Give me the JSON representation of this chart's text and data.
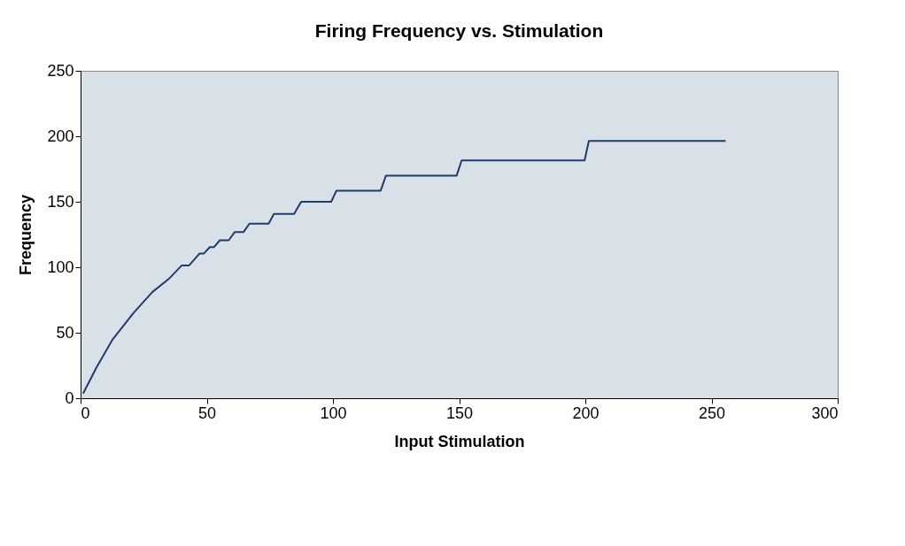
{
  "chart_data": {
    "type": "line",
    "title": "Firing Frequency vs. Stimulation",
    "xlabel": "Input Stimulation",
    "ylabel": "Frequency",
    "xlim": [
      0,
      300
    ],
    "xticks": [
      0,
      50,
      100,
      150,
      200,
      250,
      300
    ],
    "ylim": [
      0,
      250
    ],
    "yticks": [
      0,
      50,
      100,
      150,
      200,
      250
    ],
    "grid": false,
    "legend": false,
    "marker": "none",
    "line_style": "solid",
    "series": [
      {
        "color": "#1f3d6b",
        "x": [
          1,
          6.3,
          12.7,
          20.9,
          28.4,
          34.9,
          40.1,
          43,
          47.1,
          48.8,
          51.2,
          52.9,
          55.2,
          58.7,
          61.1,
          64.6,
          66.9,
          74.5,
          76.6,
          84.6,
          87.4,
          99.3,
          101.4,
          118.9,
          121,
          149,
          151,
          199.7,
          201.4,
          255.6
        ],
        "values": [
          3.6,
          23.5,
          44.9,
          65,
          81,
          91,
          101.4,
          101.4,
          110.4,
          110.4,
          115.4,
          115.4,
          120.6,
          120.6,
          126.9,
          126.9,
          133.3,
          133.3,
          140.7,
          140.7,
          150,
          150,
          158.5,
          158.5,
          170,
          170,
          181.6,
          181.6,
          196.5,
          196.5
        ]
      }
    ]
  }
}
